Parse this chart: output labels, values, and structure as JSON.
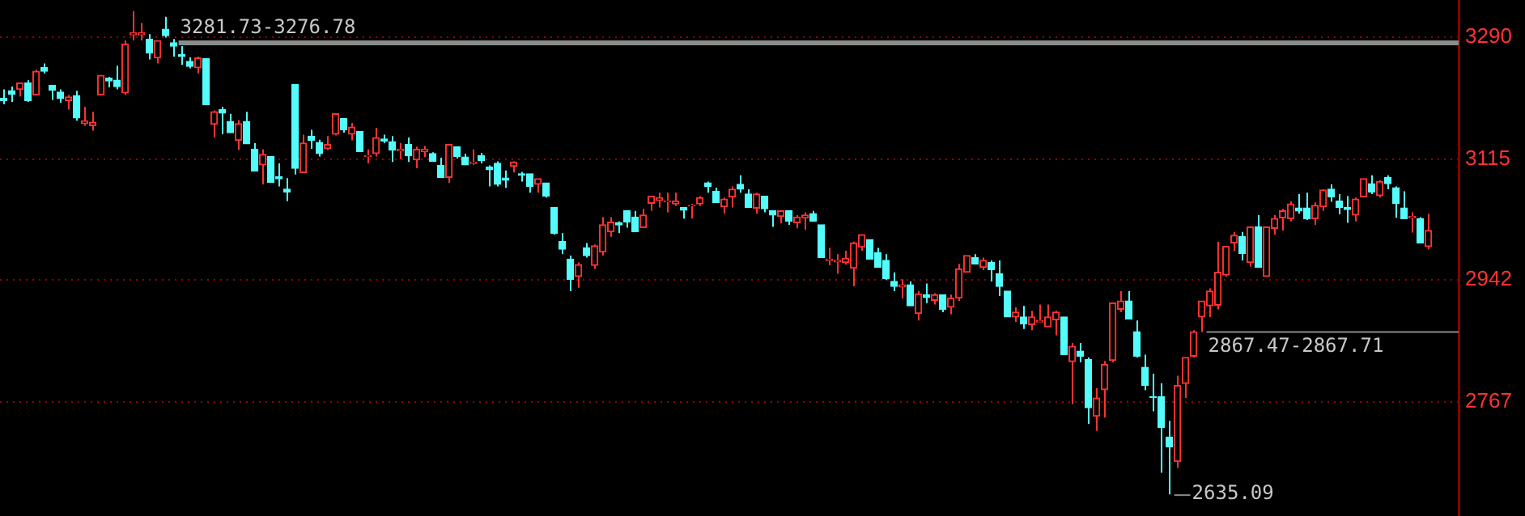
{
  "chart_data": {
    "type": "candlestick",
    "categories": [
      null,
      null,
      null,
      null,
      null,
      null,
      null,
      null,
      null,
      null,
      null,
      null,
      null,
      null,
      null,
      null,
      null,
      null,
      null,
      null,
      null,
      null,
      null,
      null,
      null,
      null,
      null,
      null,
      null,
      null,
      null,
      null,
      null,
      null,
      null,
      null,
      null,
      null,
      null,
      null,
      null,
      null,
      null,
      null,
      null,
      null,
      null,
      null,
      null,
      null,
      null,
      null,
      null,
      null,
      null,
      null,
      null,
      null,
      null,
      null,
      null,
      null,
      null,
      null,
      null,
      null,
      null,
      null,
      null,
      null,
      null,
      null,
      null,
      null,
      null,
      null,
      null,
      null,
      null,
      null,
      null,
      null,
      null,
      null,
      null,
      null,
      null,
      null,
      null,
      null,
      null,
      null,
      null,
      null,
      null,
      null,
      null,
      null,
      null,
      null,
      null,
      null,
      null,
      null,
      null,
      null,
      null,
      null,
      null,
      null,
      null,
      null,
      null,
      null,
      null,
      null,
      null,
      null,
      null,
      null,
      null,
      null,
      null,
      null,
      null,
      null,
      null,
      null,
      null,
      null,
      null,
      null,
      null,
      null,
      null,
      null,
      null,
      null,
      null,
      null,
      null,
      null,
      null,
      null,
      null,
      null,
      null,
      null,
      null,
      null,
      null,
      null,
      null,
      null,
      null,
      null,
      null,
      null,
      null,
      null,
      null,
      null,
      null,
      null,
      null,
      null,
      null,
      null,
      null,
      null,
      null,
      null,
      null,
      null,
      null,
      null,
      null
    ],
    "ohlc": [
      [
        3202,
        3215,
        3194,
        3199
      ],
      [
        3213,
        3219,
        3197,
        3208
      ],
      [
        3215,
        3224,
        3205,
        3224
      ],
      [
        3224,
        3228,
        3197,
        3199
      ],
      [
        3207,
        3243,
        3207,
        3241
      ],
      [
        3246,
        3252,
        3238,
        3241
      ],
      [
        3221,
        3221,
        3200,
        3214
      ],
      [
        3211,
        3215,
        3196,
        3202
      ],
      [
        3199,
        3207,
        3186,
        3204
      ],
      [
        3206,
        3213,
        3170,
        3174
      ],
      [
        3166,
        3190,
        3163,
        3170
      ],
      [
        3163,
        3183,
        3156,
        3168
      ],
      [
        3207,
        3235,
        3207,
        3235
      ],
      [
        3231,
        3233,
        3218,
        3227
      ],
      [
        3228,
        3249,
        3215,
        3219
      ],
      [
        3210,
        3285,
        3207,
        3280
      ],
      [
        3293,
        3327,
        3285,
        3296
      ],
      [
        3293,
        3310,
        3285,
        3296
      ],
      [
        3287,
        3294,
        3258,
        3267
      ],
      [
        3260,
        3285,
        3252,
        3285
      ],
      [
        3301,
        3319,
        3289,
        3292
      ],
      [
        3281.73,
        3287,
        3262,
        3276.78
      ],
      [
        3265,
        3277,
        3250,
        3262
      ],
      [
        3255,
        3261,
        3245,
        3248
      ],
      [
        3246,
        3262,
        3238,
        3260
      ],
      [
        3259,
        3259,
        3193,
        3193
      ],
      [
        3165,
        3185,
        3146,
        3183
      ],
      [
        3186,
        3190,
        3151,
        3181
      ],
      [
        3169,
        3180,
        3153,
        3153
      ],
      [
        3142,
        3171,
        3128,
        3166
      ],
      [
        3169,
        3183,
        3137,
        3137
      ],
      [
        3129,
        3138,
        3098,
        3098
      ],
      [
        3107,
        3129,
        3079,
        3122
      ],
      [
        3119,
        3119,
        3082,
        3082
      ],
      [
        3090,
        3109,
        3076,
        3087
      ],
      [
        3072,
        3088,
        3055,
        3068
      ],
      [
        3222,
        3222,
        3093,
        3102
      ],
      [
        3096,
        3150,
        3096,
        3138
      ],
      [
        3148,
        3157,
        3130,
        3142
      ],
      [
        3139,
        3143,
        3119,
        3123
      ],
      [
        3130,
        3148,
        3128,
        3136
      ],
      [
        3151,
        3180,
        3149,
        3180
      ],
      [
        3173,
        3173,
        3153,
        3157
      ],
      [
        3151,
        3167,
        3142,
        3161
      ],
      [
        3155,
        3155,
        3126,
        3126
      ],
      [
        3119,
        3129,
        3109,
        3120
      ],
      [
        3123,
        3160,
        3119,
        3146
      ],
      [
        3144,
        3150,
        3138,
        3141
      ],
      [
        3140,
        3148,
        3111,
        3128
      ],
      [
        3127,
        3138,
        3115,
        3129
      ],
      [
        3136,
        3146,
        3111,
        3120
      ],
      [
        3114,
        3133,
        3102,
        3129
      ],
      [
        3126,
        3134,
        3118,
        3129
      ],
      [
        3123,
        3125,
        3112,
        3112
      ],
      [
        3106,
        3117,
        3089,
        3089
      ],
      [
        3089,
        3136,
        3081,
        3136
      ],
      [
        3133,
        3133,
        3116,
        3119
      ],
      [
        3118,
        3123,
        3107,
        3107
      ],
      [
        3109,
        3129,
        3107,
        3111
      ],
      [
        3120,
        3124,
        3109,
        3113
      ],
      [
        3104,
        3106,
        3076,
        3100
      ],
      [
        3109,
        3112,
        3076,
        3079
      ],
      [
        3088,
        3099,
        3074,
        3085
      ],
      [
        3105,
        3112,
        3096,
        3111
      ],
      [
        3094,
        3097,
        3083,
        3092
      ],
      [
        3094,
        3094,
        3067,
        3076
      ],
      [
        3079,
        3087,
        3067,
        3087
      ],
      [
        3081,
        3081,
        3060,
        3062
      ],
      [
        3046,
        3046,
        3007,
        3009
      ],
      [
        2997,
        3009,
        2979,
        2986
      ],
      [
        2972,
        2977,
        2926,
        2943
      ],
      [
        2947,
        2967,
        2931,
        2964
      ],
      [
        2988,
        2995,
        2974,
        2977
      ],
      [
        2963,
        2993,
        2958,
        2991
      ],
      [
        2982,
        3032,
        2977,
        3021
      ],
      [
        3011,
        3032,
        3004,
        3025
      ],
      [
        3024,
        3026,
        3009,
        3021
      ],
      [
        3041,
        3041,
        3017,
        3025
      ],
      [
        3032,
        3041,
        3011,
        3011
      ],
      [
        3017,
        3044,
        3017,
        3035
      ],
      [
        3052,
        3062,
        3041,
        3062
      ],
      [
        3056,
        3067,
        3046,
        3060
      ],
      [
        3054,
        3067,
        3039,
        3055
      ],
      [
        3051,
        3067,
        3048,
        3055
      ],
      [
        3046,
        3046,
        3030,
        3042
      ],
      [
        3048,
        3051,
        3030,
        3049
      ],
      [
        3051,
        3062,
        3048,
        3060
      ],
      [
        3081,
        3083,
        3067,
        3076
      ],
      [
        3069,
        3074,
        3053,
        3053
      ],
      [
        3047,
        3060,
        3037,
        3058
      ],
      [
        3061,
        3076,
        3046,
        3072
      ],
      [
        3079,
        3092,
        3067,
        3072
      ],
      [
        3065,
        3072,
        3046,
        3046
      ],
      [
        3045,
        3067,
        3037,
        3065
      ],
      [
        3062,
        3062,
        3039,
        3044
      ],
      [
        3041,
        3041,
        3018,
        3035
      ],
      [
        3033,
        3041,
        3023,
        3041
      ],
      [
        3041,
        3041,
        3021,
        3026
      ],
      [
        3024,
        3035,
        3016,
        3032
      ],
      [
        3031,
        3039,
        3014,
        3035
      ],
      [
        3037,
        3041,
        3026,
        3026
      ],
      [
        3021,
        3021,
        2974,
        2974
      ],
      [
        2970,
        2988,
        2963,
        2972
      ],
      [
        2968,
        2979,
        2951,
        2970
      ],
      [
        2967,
        2984,
        2964,
        2973
      ],
      [
        2959,
        2997,
        2933,
        2995
      ],
      [
        2989,
        3007,
        2984,
        3007
      ],
      [
        3000,
        3000,
        2972,
        2972
      ],
      [
        2981,
        2988,
        2960,
        2960
      ],
      [
        2970,
        2979,
        2942,
        2944
      ],
      [
        2940,
        2953,
        2926,
        2933
      ],
      [
        2932,
        2943,
        2916,
        2935
      ],
      [
        2935,
        2940,
        2905,
        2905
      ],
      [
        2894,
        2926,
        2884,
        2922
      ],
      [
        2921,
        2937,
        2909,
        2917
      ],
      [
        2913,
        2923,
        2907,
        2921
      ],
      [
        2921,
        2921,
        2896,
        2900
      ],
      [
        2903,
        2921,
        2893,
        2916
      ],
      [
        2916,
        2965,
        2912,
        2958
      ],
      [
        2953,
        2977,
        2953,
        2977
      ],
      [
        2974,
        2979,
        2965,
        2965
      ],
      [
        2960,
        2974,
        2956,
        2970
      ],
      [
        2967,
        2970,
        2940,
        2957
      ],
      [
        2951,
        2970,
        2919,
        2933
      ],
      [
        2926,
        2926,
        2889,
        2889
      ],
      [
        2889,
        2903,
        2882,
        2896
      ],
      [
        2889,
        2905,
        2872,
        2879
      ],
      [
        2878,
        2898,
        2870,
        2889
      ],
      [
        2882,
        2907,
        2882,
        2884
      ],
      [
        2875,
        2907,
        2875,
        2889
      ],
      [
        2885,
        2898,
        2863,
        2896
      ],
      [
        2889,
        2889,
        2835,
        2835
      ],
      [
        2825,
        2852,
        2764,
        2847
      ],
      [
        2840,
        2852,
        2824,
        2833
      ],
      [
        2828,
        2831,
        2736,
        2759
      ],
      [
        2747,
        2787,
        2726,
        2773
      ],
      [
        2785,
        2826,
        2745,
        2821
      ],
      [
        2827,
        2909,
        2824,
        2909
      ],
      [
        2900,
        2926,
        2896,
        2912
      ],
      [
        2912,
        2926,
        2886,
        2886
      ],
      [
        2868,
        2884,
        2831,
        2833
      ],
      [
        2817,
        2835,
        2784,
        2791
      ],
      [
        2775,
        2808,
        2754,
        2774
      ],
      [
        2775,
        2794,
        2666,
        2731
      ],
      [
        2717,
        2740,
        2635.09,
        2703
      ],
      [
        2682,
        2805,
        2673,
        2791
      ],
      [
        2794,
        2831,
        2773,
        2831
      ],
      [
        2833,
        2870,
        2831,
        2868
      ],
      [
        2889,
        2912,
        2867.47,
        2912
      ],
      [
        2905,
        2930,
        2889,
        2926
      ],
      [
        2906,
        2997,
        2900,
        2953
      ],
      [
        2949,
        2990,
        2947,
        2990
      ],
      [
        2995,
        3011,
        2984,
        3006
      ],
      [
        3004,
        3011,
        2970,
        2980
      ],
      [
        2967,
        3018,
        2961,
        3018
      ],
      [
        3018,
        3035,
        2960,
        2960
      ],
      [
        2947,
        3018,
        2947,
        3018
      ],
      [
        3016,
        3035,
        3007,
        3030
      ],
      [
        3031,
        3044,
        3013,
        3041
      ],
      [
        3030,
        3055,
        3026,
        3051
      ],
      [
        3045,
        3065,
        3037,
        3041
      ],
      [
        3045,
        3067,
        3028,
        3030
      ],
      [
        3030,
        3053,
        3021,
        3049
      ],
      [
        3047,
        3072,
        3041,
        3071
      ],
      [
        3072,
        3079,
        3054,
        3061
      ],
      [
        3055,
        3065,
        3036,
        3046
      ],
      [
        3046,
        3062,
        3024,
        3043
      ],
      [
        3035,
        3060,
        3026,
        3058
      ],
      [
        3061,
        3087,
        3061,
        3087
      ],
      [
        3080,
        3092,
        3065,
        3068
      ],
      [
        3063,
        3085,
        3060,
        3083
      ],
      [
        3089,
        3092,
        3072,
        3080
      ],
      [
        3074,
        3076,
        3031,
        3052
      ],
      [
        3045,
        3069,
        3030,
        3030
      ],
      [
        3031,
        3039,
        3010,
        3033
      ],
      [
        3030,
        3032,
        2995,
        2995
      ],
      [
        2990,
        3037,
        2986,
        3013
      ]
    ],
    "colors": [
      "#54fcfc",
      "#54fcfc",
      "#ff3232",
      "#54fcfc",
      "#ff3232",
      "#54fcfc",
      "#54fcfc",
      "#54fcfc",
      "#ff3232",
      "#54fcfc",
      "#ff3232",
      "#ff3232",
      "#ff3232",
      "#54fcfc",
      "#54fcfc",
      "#ff3232",
      "#ff3232",
      "#ff3232",
      "#54fcfc",
      "#ff3232",
      "#54fcfc",
      "#54fcfc",
      "#54fcfc",
      "#54fcfc",
      "#ff3232",
      "#54fcfc",
      "#ff3232",
      "#54fcfc",
      "#54fcfc",
      "#ff3232",
      "#54fcfc",
      "#54fcfc",
      "#ff3232",
      "#54fcfc",
      "#54fcfc",
      "#54fcfc",
      "#54fcfc",
      "#ff3232",
      "#54fcfc",
      "#54fcfc",
      "#ff3232",
      "#ff3232",
      "#54fcfc",
      "#ff3232",
      "#54fcfc",
      "#ff3232",
      "#ff3232",
      "#54fcfc",
      "#54fcfc",
      "#ff3232",
      "#54fcfc",
      "#ff3232",
      "#ff3232",
      "#54fcfc",
      "#54fcfc",
      "#ff3232",
      "#54fcfc",
      "#54fcfc",
      "#ff3232",
      "#54fcfc",
      "#54fcfc",
      "#54fcfc",
      "#54fcfc",
      "#ff3232",
      "#54fcfc",
      "#54fcfc",
      "#ff3232",
      "#54fcfc",
      "#54fcfc",
      "#54fcfc",
      "#54fcfc",
      "#ff3232",
      "#54fcfc",
      "#ff3232",
      "#ff3232",
      "#ff3232",
      "#54fcfc",
      "#54fcfc",
      "#54fcfc",
      "#ff3232",
      "#ff3232",
      "#ff3232",
      "#ff3232",
      "#ff3232",
      "#54fcfc",
      "#ff3232",
      "#ff3232",
      "#54fcfc",
      "#54fcfc",
      "#ff3232",
      "#ff3232",
      "#54fcfc",
      "#54fcfc",
      "#ff3232",
      "#54fcfc",
      "#54fcfc",
      "#ff3232",
      "#54fcfc",
      "#ff3232",
      "#ff3232",
      "#54fcfc",
      "#54fcfc",
      "#ff3232",
      "#ff3232",
      "#ff3232",
      "#ff3232",
      "#ff3232",
      "#54fcfc",
      "#54fcfc",
      "#54fcfc",
      "#54fcfc",
      "#ff3232",
      "#54fcfc",
      "#ff3232",
      "#54fcfc",
      "#ff3232",
      "#54fcfc",
      "#ff3232",
      "#ff3232",
      "#ff3232",
      "#54fcfc",
      "#ff3232",
      "#54fcfc",
      "#54fcfc",
      "#54fcfc",
      "#ff3232",
      "#54fcfc",
      "#ff3232",
      "#ff3232",
      "#ff3232",
      "#ff3232",
      "#54fcfc",
      "#ff3232",
      "#54fcfc",
      "#54fcfc",
      "#ff3232",
      "#ff3232",
      "#ff3232",
      "#ff3232",
      "#54fcfc",
      "#54fcfc",
      "#54fcfc",
      "#54fcfc",
      "#54fcfc",
      "#54fcfc",
      "#ff3232",
      "#ff3232",
      "#ff3232",
      "#ff3232",
      "#ff3232",
      "#ff3232",
      "#ff3232",
      "#ff3232",
      "#54fcfc",
      "#ff3232",
      "#54fcfc",
      "#ff3232",
      "#ff3232",
      "#ff3232",
      "#ff3232",
      "#54fcfc",
      "#54fcfc",
      "#ff3232",
      "#ff3232",
      "#54fcfc",
      "#54fcfc",
      "#54fcfc",
      "#ff3232",
      "#ff3232",
      "#54fcfc",
      "#ff3232",
      "#54fcfc",
      "#54fcfc",
      "#54fcfc",
      "#ff3232",
      "#54fcfc",
      "#ff3232"
    ],
    "ylim": [
      2604,
      3343
    ],
    "yticks": [
      2767,
      2942,
      3115,
      3290
    ],
    "grid": "y",
    "ref_lines": [
      {
        "axis": "y",
        "value": 3281.73,
        "label": "3281.73-3276.78",
        "color": "#8c8c8c"
      },
      {
        "axis": "y",
        "value": 2867.47,
        "label": "2867.47-2867.71",
        "color": "#8c8c8c"
      },
      {
        "axis": "y",
        "value": 2635.09,
        "label": "2635.09",
        "color": "#8c8c8c"
      }
    ]
  }
}
